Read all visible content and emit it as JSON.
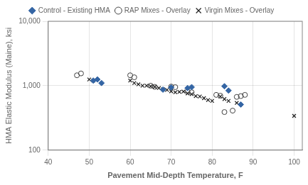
{
  "chart_data": {
    "type": "scatter",
    "xlabel": "Pavement Mid-Depth Temperature, F",
    "ylabel": "HMA Elastic Modulus (Maine), ksi",
    "xlim": [
      40,
      102
    ],
    "ylim": [
      100,
      10000
    ],
    "xticks": [
      40,
      50,
      60,
      70,
      80,
      90,
      100
    ],
    "yticks": [
      100,
      {
        "value": 1000,
        "label": "1,000"
      },
      {
        "value": 10000,
        "label": "10,000"
      }
    ],
    "log": "y",
    "grid": true,
    "legend": "top",
    "series": [
      {
        "name": "Control - Existing HMA",
        "color": "#3465A4",
        "marker": "diamond",
        "x": [
          51,
          52,
          53,
          68,
          70,
          74,
          75,
          83,
          84,
          87
        ],
        "values": [
          1200,
          1250,
          1100,
          870,
          940,
          920,
          950,
          980,
          840,
          510
        ]
      },
      {
        "name": "RAP Mixes - Overlay",
        "color": "#404040",
        "marker": "open_circle",
        "x": [
          47,
          48,
          60,
          61,
          65,
          66,
          70,
          71,
          74,
          75,
          81,
          82,
          83,
          85,
          86,
          87,
          88
        ],
        "values": [
          1450,
          1550,
          1450,
          1350,
          1000,
          960,
          970,
          950,
          810,
          790,
          720,
          700,
          390,
          410,
          670,
          690,
          720
        ]
      },
      {
        "name": "Virgin Mixes - Overlay",
        "color": "#202020",
        "marker": "x",
        "x": [
          50,
          51,
          60,
          61,
          62,
          63,
          64,
          65,
          66,
          67,
          68,
          69,
          70,
          71,
          72,
          73,
          74,
          75,
          76,
          77,
          78,
          79,
          80,
          82,
          83,
          84,
          86,
          100
        ],
        "values": [
          1250,
          1200,
          1200,
          1100,
          1050,
          1000,
          1000,
          980,
          960,
          920,
          880,
          860,
          820,
          790,
          800,
          810,
          760,
          740,
          690,
          680,
          640,
          600,
          580,
          680,
          620,
          580,
          540,
          340
        ]
      }
    ]
  }
}
